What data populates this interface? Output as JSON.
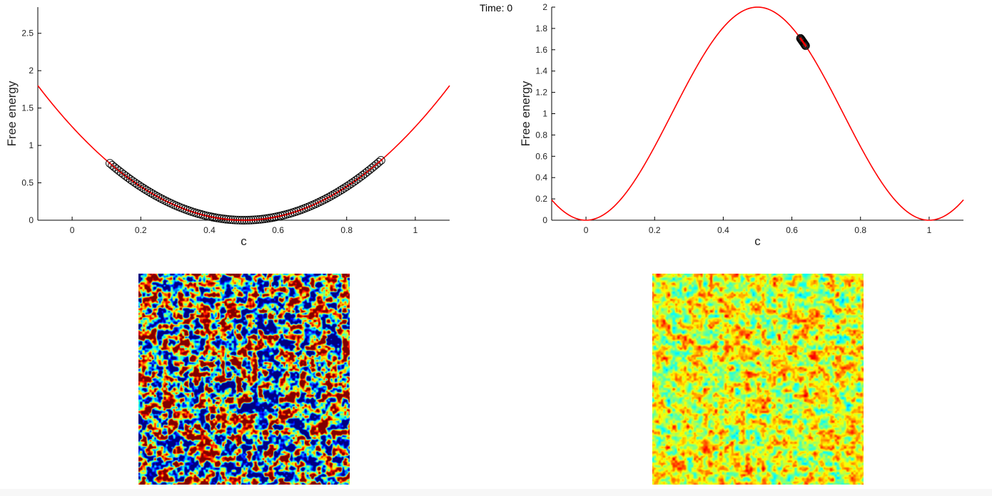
{
  "time_label": "Time: 0",
  "chart_data": [
    {
      "type": "line",
      "id": "left-chart",
      "title": "",
      "xlabel": "c",
      "ylabel": "Free energy",
      "xlim": [
        -0.1,
        1.1
      ],
      "ylim": [
        0,
        2.85
      ],
      "xticks": [
        0,
        0.2,
        0.4,
        0.6,
        0.8,
        1
      ],
      "xtick_labels": [
        "0",
        "0.2",
        "0.4",
        "0.6",
        "0.8",
        "1"
      ],
      "yticks": [
        0,
        0.5,
        1,
        1.5,
        2,
        2.5
      ],
      "ytick_labels": [
        "0",
        "0.5",
        "1",
        "1.5",
        "2",
        "2.5"
      ],
      "curve": {
        "formula": "5*(c-0.5)^2",
        "color": "#ff0000"
      },
      "markers": {
        "style": "open-circle",
        "x_range": [
          0.11,
          0.9
        ],
        "count": 120,
        "color": "#000000",
        "inner_color": "#ff0000"
      },
      "grid": false
    },
    {
      "type": "line",
      "id": "right-chart",
      "title": "",
      "xlabel": "c",
      "ylabel": "Free energy",
      "xlim": [
        -0.1,
        1.1
      ],
      "ylim": [
        0,
        2
      ],
      "xticks": [
        0,
        0.2,
        0.4,
        0.6,
        0.8,
        1
      ],
      "xtick_labels": [
        "0",
        "0.2",
        "0.4",
        "0.6",
        "0.8",
        "1"
      ],
      "yticks": [
        0,
        0.2,
        0.4,
        0.6,
        0.8,
        1,
        1.2,
        1.4,
        1.6,
        1.8,
        2
      ],
      "ytick_labels": [
        "0",
        "0.2",
        "0.4",
        "0.6",
        "0.8",
        "1",
        "1.2",
        "1.4",
        "1.6",
        "1.8",
        "2"
      ],
      "curve": {
        "formula": "1-cos(2*pi*c)",
        "color": "#ff0000"
      },
      "markers": {
        "style": "open-circle",
        "x_range": [
          0.625,
          0.64
        ],
        "count": 12,
        "color": "#000000",
        "inner_color": "#ff0000"
      },
      "grid": false
    }
  ],
  "maps": [
    {
      "id": "left-map",
      "type": "heatmap",
      "colormap": "jet",
      "value_range": [
        0,
        1
      ],
      "dominant_colors": [
        "#ff0000",
        "#0000ff",
        "#00ffff",
        "#00ff00",
        "#ffff00"
      ]
    },
    {
      "id": "right-map",
      "type": "heatmap",
      "colormap": "jet",
      "value_range": [
        0.45,
        0.75
      ],
      "dominant_colors": [
        "#00ff00",
        "#00ffff",
        "#ffff00"
      ]
    }
  ]
}
